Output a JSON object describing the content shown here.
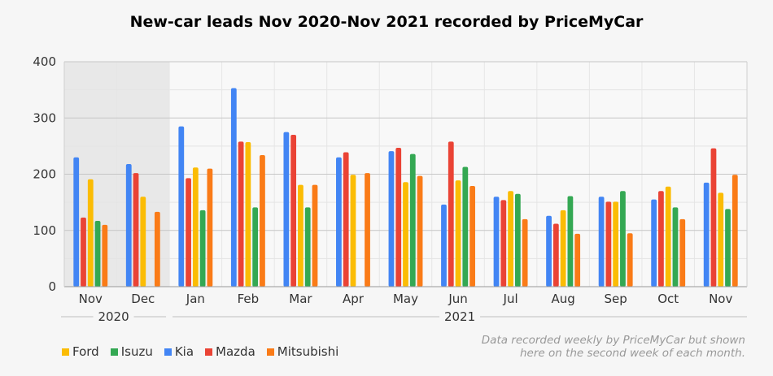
{
  "chart_data": {
    "type": "bar",
    "title": "New-car leads Nov 2020-Nov 2021 recorded by PriceMyCar",
    "categories": [
      "Nov",
      "Dec",
      "Jan",
      "Feb",
      "Mar",
      "Apr",
      "May",
      "Jun",
      "Jul",
      "Aug",
      "Sep",
      "Oct",
      "Nov"
    ],
    "year_groups": [
      {
        "label": "2020",
        "categories": [
          "Nov",
          "Dec"
        ]
      },
      {
        "label": "2021",
        "categories": [
          "Jan",
          "Feb",
          "Mar",
          "Apr",
          "May",
          "Jun",
          "Jul",
          "Aug",
          "Sep",
          "Oct",
          "Nov"
        ]
      }
    ],
    "highlight_region": {
      "categories": [
        "Nov",
        "Dec"
      ],
      "year": "2020",
      "shaded": true
    },
    "ylim": [
      0,
      400
    ],
    "yticks": [
      0,
      100,
      200,
      300,
      400
    ],
    "grid": true,
    "legend_position": "bottom-left",
    "series": [
      {
        "name": "Kia",
        "color": "#4285f4",
        "values": [
          230,
          218,
          285,
          353,
          275,
          230,
          241,
          146,
          160,
          126,
          160,
          155,
          185
        ]
      },
      {
        "name": "Mazda",
        "color": "#ea4335",
        "values": [
          123,
          202,
          193,
          258,
          270,
          239,
          247,
          258,
          154,
          112,
          151,
          170,
          246
        ]
      },
      {
        "name": "Ford",
        "color": "#fbbc04",
        "values": [
          191,
          160,
          212,
          257,
          181,
          199,
          186,
          189,
          170,
          136,
          151,
          178,
          167
        ]
      },
      {
        "name": "Isuzu",
        "color": "#34a853",
        "values": [
          117,
          null,
          136,
          141,
          141,
          null,
          236,
          213,
          165,
          161,
          170,
          141,
          138
        ]
      },
      {
        "name": "Mitsubishi",
        "color": "#fa7b17",
        "values": [
          110,
          133,
          210,
          234,
          181,
          202,
          197,
          179,
          120,
          94,
          95,
          120,
          199
        ]
      }
    ],
    "legend": [
      {
        "name": "Ford",
        "color": "#fbbc04"
      },
      {
        "name": "Isuzu",
        "color": "#34a853"
      },
      {
        "name": "Kia",
        "color": "#4285f4"
      },
      {
        "name": "Mazda",
        "color": "#ea4335"
      },
      {
        "name": "Mitsubishi",
        "color": "#fa7b17"
      }
    ],
    "note": [
      "Data recorded weekly by PriceMyCar but shown",
      "here on the second week of each month."
    ]
  }
}
